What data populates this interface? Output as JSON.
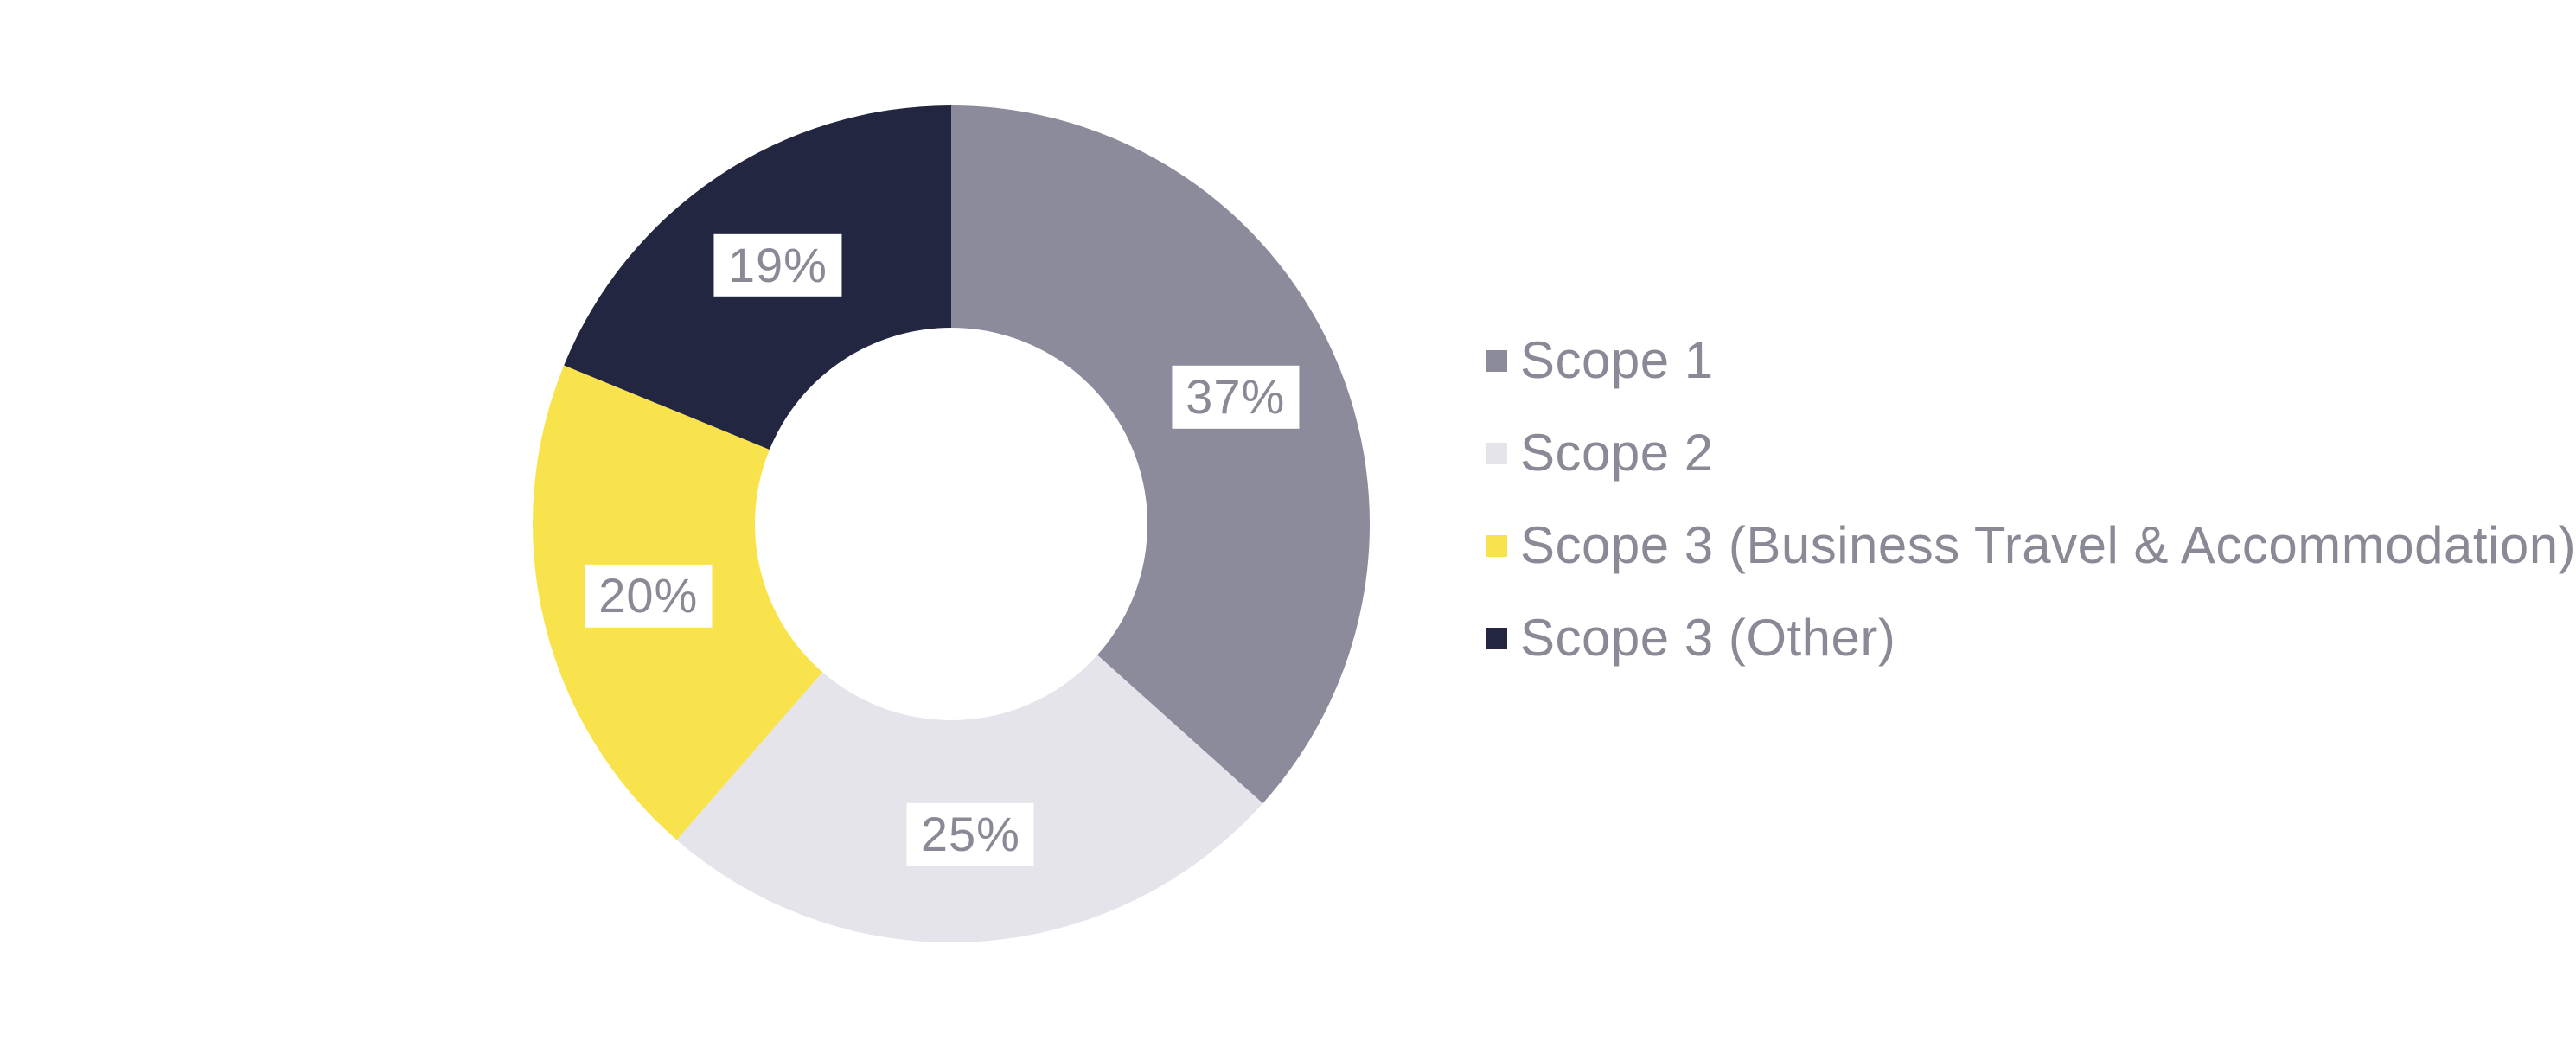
{
  "page": {
    "background_color": "#FFFFFF"
  },
  "chart_data": {
    "type": "pie",
    "subtype": "donut",
    "title": "",
    "direction": "clockwise",
    "start_angle_deg": 0,
    "donut_hole_ratio": 0.47,
    "grid": false,
    "legend_position": "right",
    "value_label_text_color": "#8A8A97",
    "value_label_bg_color": "#FFFFFF",
    "legend_text_color": "#8A8A97",
    "slices": [
      {
        "label": "Scope 1",
        "value": 37,
        "display": "37%",
        "color": "#8B8B9C"
      },
      {
        "label": "Scope 2",
        "value": 25,
        "display": "25%",
        "color": "#E5E4EA"
      },
      {
        "label": "Scope 3 (Business Travel & Accommodation)",
        "value": 20,
        "display": "20%",
        "color": "#F9E34C"
      },
      {
        "label": "Scope 3 (Other)",
        "value": 19,
        "display": "19%",
        "color": "#232640"
      }
    ]
  }
}
